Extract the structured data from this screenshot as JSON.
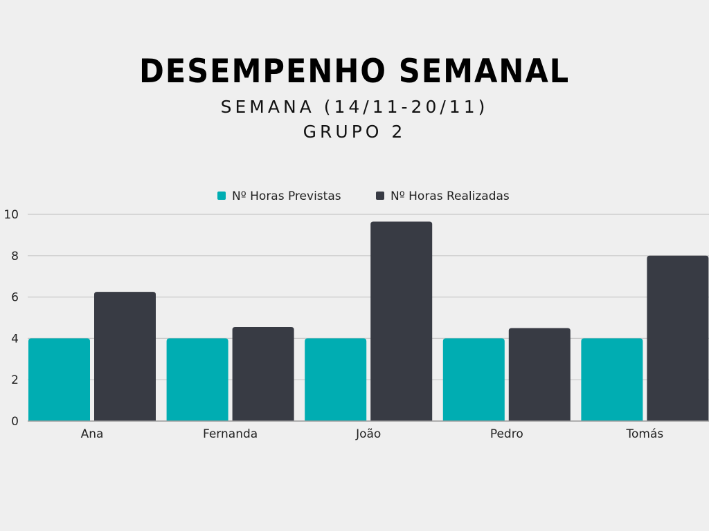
{
  "title": "DESEMPENHO SEMANAL",
  "subtitle_line1": "SEMANA (14/11-20/11)",
  "subtitle_line2": "GRUPO 2",
  "chart_data": {
    "type": "bar",
    "categories": [
      "Ana",
      "Fernanda",
      "João",
      "Pedro",
      "Tomás"
    ],
    "series": [
      {
        "name": "Nº Horas Previstas",
        "values": [
          4,
          4,
          4,
          4,
          4
        ],
        "color": "#00adb2"
      },
      {
        "name": "Nº Horas Realizadas",
        "values": [
          6.25,
          4.55,
          9.65,
          4.5,
          8
        ],
        "color": "#383b44"
      }
    ],
    "yticks": [
      0,
      2,
      4,
      6,
      8,
      10
    ],
    "ylim": [
      0,
      10
    ],
    "grid": true,
    "legend_position": "top-center",
    "title": "",
    "xlabel": "",
    "ylabel": ""
  }
}
